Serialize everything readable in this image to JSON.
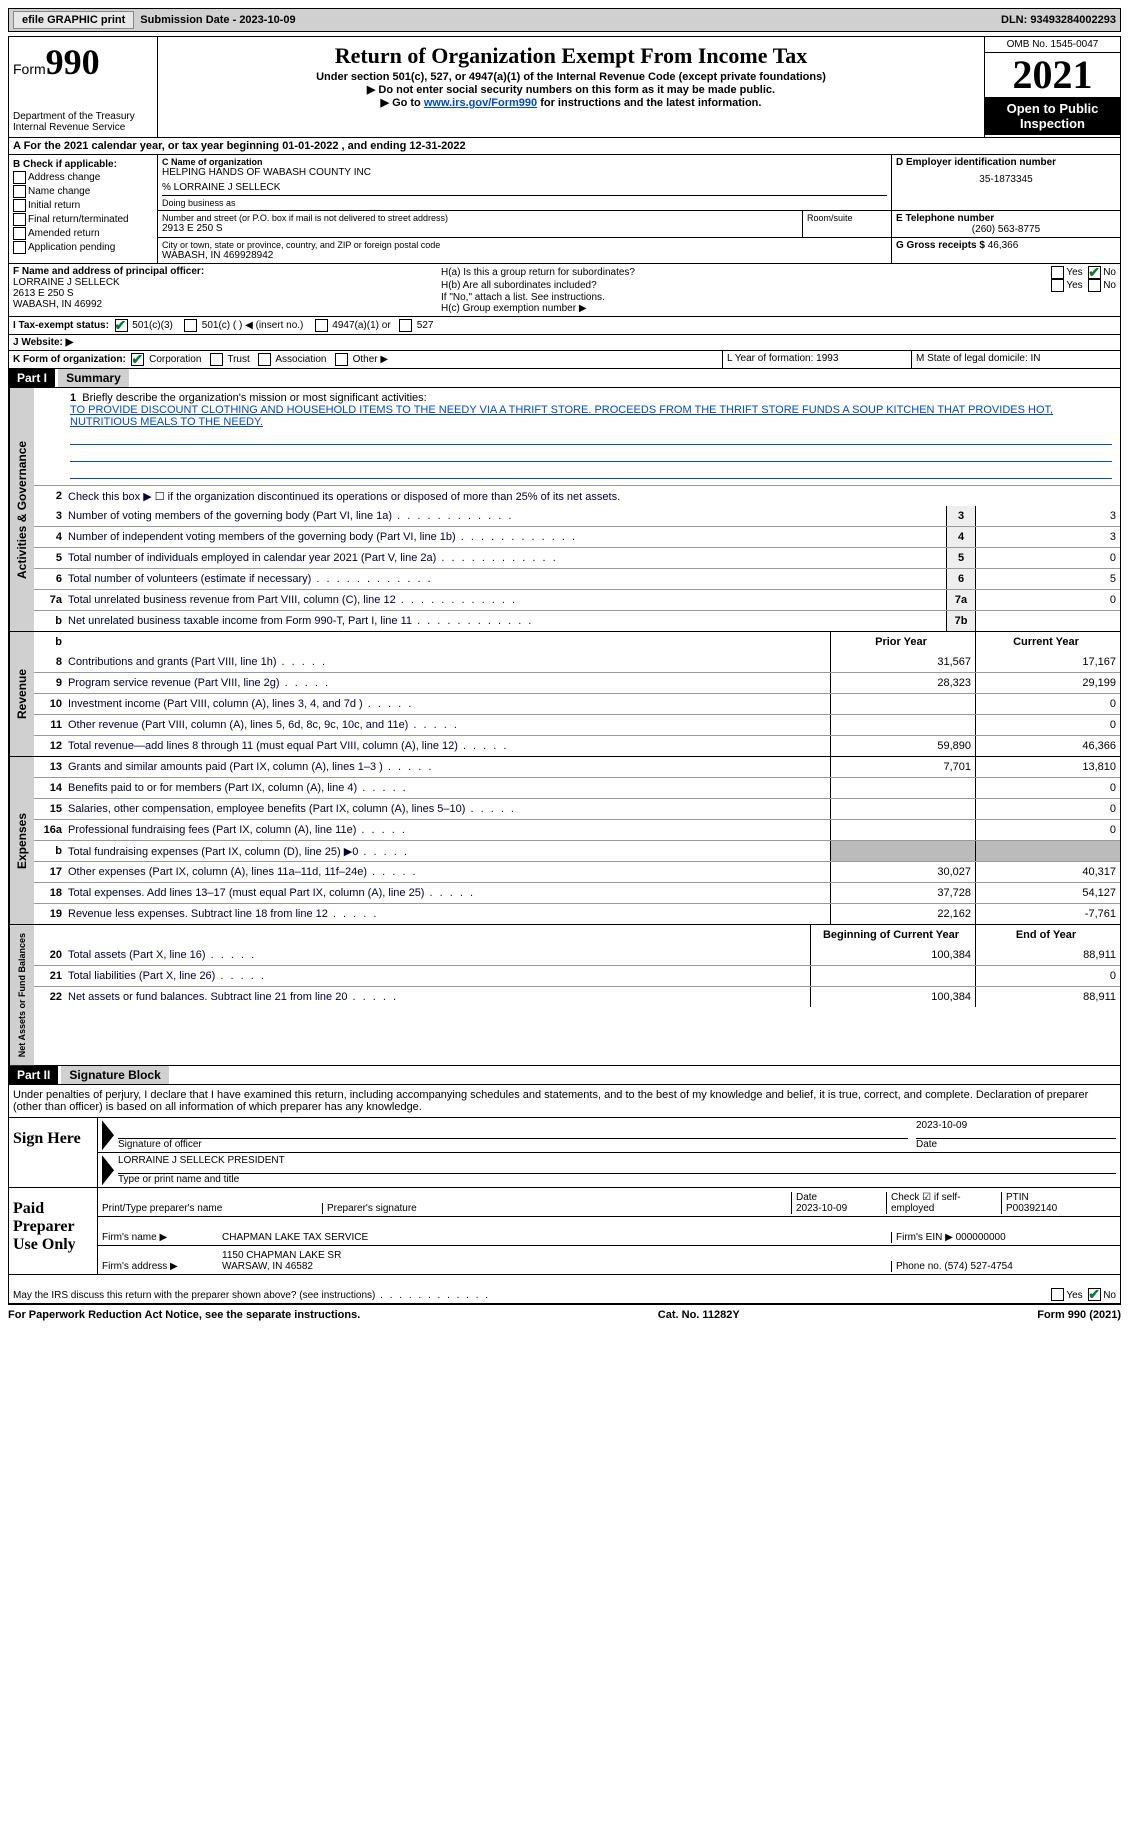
{
  "topbar": {
    "efile": "efile GRAPHIC print",
    "submission": "Submission Date - 2023-10-09",
    "dln": "DLN: 93493284002293"
  },
  "header": {
    "form_word": "Form",
    "form_num": "990",
    "dept": "Department of the Treasury",
    "irs": "Internal Revenue Service",
    "title": "Return of Organization Exempt From Income Tax",
    "sub1": "Under section 501(c), 527, or 4947(a)(1) of the Internal Revenue Code (except private foundations)",
    "sub2": "▶ Do not enter social security numbers on this form as it may be made public.",
    "sub3_pre": "▶ Go to ",
    "sub3_link": "www.irs.gov/Form990",
    "sub3_post": " for instructions and the latest information.",
    "omb": "OMB No. 1545-0047",
    "year": "2021",
    "open": "Open to Public Inspection"
  },
  "sectionA": "A For the 2021 calendar year, or tax year beginning 01-01-2022   , and ending 12-31-2022",
  "boxB": {
    "label": "B Check if applicable:",
    "items": [
      "Address change",
      "Name change",
      "Initial return",
      "Final return/terminated",
      "Amended return",
      "Application pending"
    ]
  },
  "boxC": {
    "label": "C Name of organization",
    "org": "HELPING HANDS OF WABASH COUNTY INC",
    "care": "% LORRAINE J SELLECK",
    "dba_label": "Doing business as",
    "street_label": "Number and street (or P.O. box if mail is not delivered to street address)",
    "street": "2913 E 250 S",
    "room_label": "Room/suite",
    "city_label": "City or town, state or province, country, and ZIP or foreign postal code",
    "city": "WABASH, IN  469928942"
  },
  "boxD": {
    "label": "D Employer identification number",
    "val": "35-1873345"
  },
  "boxE": {
    "label": "E Telephone number",
    "val": "(260) 563-8775"
  },
  "boxG": {
    "label": "G Gross receipts $",
    "val": "46,366"
  },
  "boxF": {
    "label": "F  Name and address of principal officer:",
    "name": "LORRAINE J SELLECK",
    "addr1": "2613 E 250 S",
    "addr2": "WABASH, IN  46992"
  },
  "boxH": {
    "ha": "H(a)  Is this a group return for subordinates?",
    "hb": "H(b)  Are all subordinates included?",
    "hb_note": "If \"No,\" attach a list. See instructions.",
    "hc": "H(c)  Group exemption number ▶",
    "yes": "Yes",
    "no": "No"
  },
  "boxI": {
    "label": "I  Tax-exempt status:",
    "c3": "501(c)(3)",
    "c": "501(c) (  ) ◀ (insert no.)",
    "a1": "4947(a)(1) or",
    "s527": "527"
  },
  "boxJ": "J  Website: ▶",
  "boxK": {
    "label": "K Form of organization:",
    "corp": "Corporation",
    "trust": "Trust",
    "assoc": "Association",
    "other": "Other ▶"
  },
  "boxL": "L Year of formation: 1993",
  "boxM": "M State of legal domicile: IN",
  "part1": {
    "header": "Part I",
    "title": "Summary"
  },
  "summary": {
    "l1_label": "Briefly describe the organization's mission or most significant activities:",
    "l1_text": "TO PROVIDE DISCOUNT CLOTHING AND HOUSEHOLD ITEMS TO THE NEEDY VIA A THRIFT STORE. PROCEEDS FROM THE THRIFT STORE FUNDS A SOUP KITCHEN THAT PROVIDES HOT, NUTRITIOUS MEALS TO THE NEEDY.",
    "l2": "Check this box ▶ ☐  if the organization discontinued its operations or disposed of more than 25% of its net assets.",
    "rows_ag": [
      {
        "n": "3",
        "d": "Number of voting members of the governing body (Part VI, line 1a)",
        "box": "3",
        "v": "3"
      },
      {
        "n": "4",
        "d": "Number of independent voting members of the governing body (Part VI, line 1b)",
        "box": "4",
        "v": "3"
      },
      {
        "n": "5",
        "d": "Total number of individuals employed in calendar year 2021 (Part V, line 2a)",
        "box": "5",
        "v": "0"
      },
      {
        "n": "6",
        "d": "Total number of volunteers (estimate if necessary)",
        "box": "6",
        "v": "5"
      },
      {
        "n": "7a",
        "d": "Total unrelated business revenue from Part VIII, column (C), line 12",
        "box": "7a",
        "v": "0"
      },
      {
        "n": "b",
        "d": "Net unrelated business taxable income from Form 990-T, Part I, line 11",
        "box": "7b",
        "v": ""
      }
    ],
    "col_prior": "Prior Year",
    "col_curr": "Current Year",
    "rev": [
      {
        "n": "8",
        "d": "Contributions and grants (Part VIII, line 1h)",
        "p": "31,567",
        "c": "17,167"
      },
      {
        "n": "9",
        "d": "Program service revenue (Part VIII, line 2g)",
        "p": "28,323",
        "c": "29,199"
      },
      {
        "n": "10",
        "d": "Investment income (Part VIII, column (A), lines 3, 4, and 7d )",
        "p": "",
        "c": "0"
      },
      {
        "n": "11",
        "d": "Other revenue (Part VIII, column (A), lines 5, 6d, 8c, 9c, 10c, and 11e)",
        "p": "",
        "c": "0"
      },
      {
        "n": "12",
        "d": "Total revenue—add lines 8 through 11 (must equal Part VIII, column (A), line 12)",
        "p": "59,890",
        "c": "46,366"
      }
    ],
    "exp": [
      {
        "n": "13",
        "d": "Grants and similar amounts paid (Part IX, column (A), lines 1–3 )",
        "p": "7,701",
        "c": "13,810"
      },
      {
        "n": "14",
        "d": "Benefits paid to or for members (Part IX, column (A), line 4)",
        "p": "",
        "c": "0"
      },
      {
        "n": "15",
        "d": "Salaries, other compensation, employee benefits (Part IX, column (A), lines 5–10)",
        "p": "",
        "c": "0"
      },
      {
        "n": "16a",
        "d": "Professional fundraising fees (Part IX, column (A), line 11e)",
        "p": "",
        "c": "0"
      },
      {
        "n": "b",
        "d": "Total fundraising expenses (Part IX, column (D), line 25) ▶0",
        "p": "shaded",
        "c": "shaded"
      },
      {
        "n": "17",
        "d": "Other expenses (Part IX, column (A), lines 11a–11d, 11f–24e)",
        "p": "30,027",
        "c": "40,317"
      },
      {
        "n": "18",
        "d": "Total expenses. Add lines 13–17 (must equal Part IX, column (A), line 25)",
        "p": "37,728",
        "c": "54,127"
      },
      {
        "n": "19",
        "d": "Revenue less expenses. Subtract line 18 from line 12",
        "p": "22,162",
        "c": "-7,761"
      }
    ],
    "col_beg": "Beginning of Current Year",
    "col_end": "End of Year",
    "net": [
      {
        "n": "20",
        "d": "Total assets (Part X, line 16)",
        "p": "100,384",
        "c": "88,911"
      },
      {
        "n": "21",
        "d": "Total liabilities (Part X, line 26)",
        "p": "",
        "c": "0"
      },
      {
        "n": "22",
        "d": "Net assets or fund balances. Subtract line 21 from line 20",
        "p": "100,384",
        "c": "88,911"
      }
    ],
    "vtab_ag": "Activities & Governance",
    "vtab_rev": "Revenue",
    "vtab_exp": "Expenses",
    "vtab_net": "Net Assets or Fund Balances"
  },
  "part2": {
    "header": "Part II",
    "title": "Signature Block"
  },
  "sig": {
    "decl": "Under penalties of perjury, I declare that I have examined this return, including accompanying schedules and statements, and to the best of my knowledge and belief, it is true, correct, and complete. Declaration of preparer (other than officer) is based on all information of which preparer has any knowledge.",
    "sign_here": "Sign Here",
    "sig_officer": "Signature of officer",
    "sig_date": "2023-10-09",
    "date_label": "Date",
    "name_title": "LORRAINE J SELLECK  PRESIDENT",
    "type_name": "Type or print name and title",
    "paid": "Paid Preparer Use Only",
    "prep_name_label": "Print/Type preparer's name",
    "prep_sig_label": "Preparer's signature",
    "prep_date_label": "Date",
    "prep_date": "2023-10-09",
    "check_self": "Check ☑ if self-employed",
    "ptin_label": "PTIN",
    "ptin": "P00392140",
    "firm_name_label": "Firm's name    ▶",
    "firm_name": "CHAPMAN LAKE TAX SERVICE",
    "firm_ein_label": "Firm's EIN ▶",
    "firm_ein": "000000000",
    "firm_addr_label": "Firm's address ▶",
    "firm_addr": "1150 CHAPMAN LAKE SR",
    "firm_city": "WARSAW, IN  46582",
    "firm_phone_label": "Phone no.",
    "firm_phone": "(574) 527-4754",
    "discuss": "May the IRS discuss this return with the preparer shown above? (see instructions)"
  },
  "footer": {
    "pra": "For Paperwork Reduction Act Notice, see the separate instructions.",
    "cat": "Cat. No. 11282Y",
    "form": "Form 990 (2021)"
  }
}
